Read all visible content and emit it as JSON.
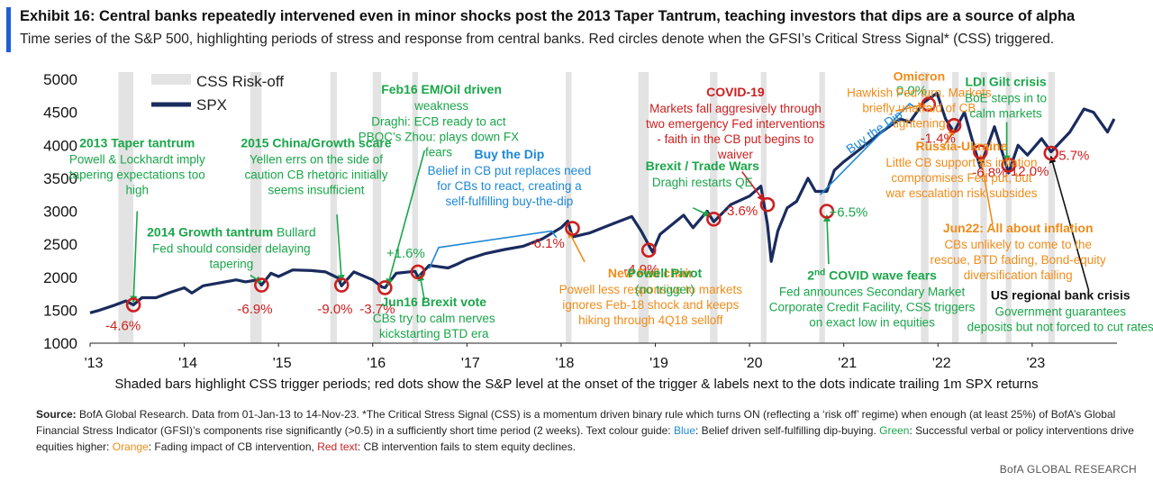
{
  "header": {
    "title": "Exhibit 16: Central banks repeatedly intervened even in minor shocks post the 2013 Taper Tantrum, teaching investors that dips are a source of alpha",
    "subtitle": "Time series of the S&P 500, highlighting  periods of stress and response from central banks. Red circles denote when the GFSI’s Critical  Stress Signal* (CSS) triggered.",
    "accent_color": "#1f5fd6"
  },
  "chart_data": {
    "type": "line",
    "title": "",
    "xlabel": "",
    "ylabel": "",
    "x_range": [
      "2013-01",
      "2023-11"
    ],
    "ylim": [
      1000,
      5000
    ],
    "y_ticks": [
      "1000",
      "1500",
      "2000",
      "2500",
      "3000",
      "3500",
      "4000",
      "4500",
      "5000"
    ],
    "x_ticks": [
      "'13",
      "'14",
      "'15",
      "'16",
      "'17",
      "'18",
      "'19",
      "'20",
      "'21",
      "'22",
      "'23"
    ],
    "grid": false,
    "legend": {
      "placement": "top-left",
      "items": [
        {
          "label": "CSS Risk-off",
          "kind": "shade"
        },
        {
          "label": "SPX",
          "kind": "line"
        }
      ]
    },
    "colors": {
      "line": "#1a2b5e",
      "shade": "#e3e3e3",
      "dot": "#cc1f1f",
      "green": "#1aa64a",
      "blue": "#1e88d6",
      "orange": "#f08c1a",
      "red": "#cc1f1f"
    },
    "series": [
      {
        "name": "SPX",
        "points": [
          [
            2013.0,
            1460
          ],
          [
            2013.1,
            1500
          ],
          [
            2013.25,
            1570
          ],
          [
            2013.38,
            1640
          ],
          [
            2013.46,
            1580
          ],
          [
            2013.55,
            1690
          ],
          [
            2013.7,
            1690
          ],
          [
            2013.85,
            1770
          ],
          [
            2014.0,
            1840
          ],
          [
            2014.08,
            1760
          ],
          [
            2014.2,
            1870
          ],
          [
            2014.4,
            1920
          ],
          [
            2014.55,
            1960
          ],
          [
            2014.65,
            1930
          ],
          [
            2014.78,
            1960
          ],
          [
            2014.82,
            1880
          ],
          [
            2014.92,
            2060
          ],
          [
            2015.0,
            2010
          ],
          [
            2015.15,
            2110
          ],
          [
            2015.35,
            2100
          ],
          [
            2015.5,
            2080
          ],
          [
            2015.63,
            1990
          ],
          [
            2015.67,
            1870
          ],
          [
            2015.8,
            2080
          ],
          [
            2016.0,
            1960
          ],
          [
            2016.1,
            1850
          ],
          [
            2016.13,
            1840
          ],
          [
            2016.25,
            2060
          ],
          [
            2016.45,
            2090
          ],
          [
            2016.48,
            2000
          ],
          [
            2016.6,
            2180
          ],
          [
            2016.8,
            2140
          ],
          [
            2016.9,
            2200
          ],
          [
            2017.0,
            2270
          ],
          [
            2017.2,
            2360
          ],
          [
            2017.4,
            2420
          ],
          [
            2017.6,
            2470
          ],
          [
            2017.8,
            2580
          ],
          [
            2018.0,
            2750
          ],
          [
            2018.07,
            2850
          ],
          [
            2018.12,
            2610
          ],
          [
            2018.3,
            2670
          ],
          [
            2018.55,
            2810
          ],
          [
            2018.75,
            2920
          ],
          [
            2018.85,
            2700
          ],
          [
            2018.97,
            2380
          ],
          [
            2019.05,
            2650
          ],
          [
            2019.3,
            2940
          ],
          [
            2019.4,
            2750
          ],
          [
            2019.55,
            3000
          ],
          [
            2019.62,
            2840
          ],
          [
            2019.8,
            3100
          ],
          [
            2020.0,
            3230
          ],
          [
            2020.12,
            3380
          ],
          [
            2020.19,
            2800
          ],
          [
            2020.23,
            2240
          ],
          [
            2020.3,
            2700
          ],
          [
            2020.4,
            3050
          ],
          [
            2020.5,
            3150
          ],
          [
            2020.62,
            3500
          ],
          [
            2020.7,
            3300
          ],
          [
            2020.82,
            3300
          ],
          [
            2020.9,
            3620
          ],
          [
            2021.0,
            3750
          ],
          [
            2021.2,
            3970
          ],
          [
            2021.4,
            4200
          ],
          [
            2021.6,
            4400
          ],
          [
            2021.7,
            4350
          ],
          [
            2021.85,
            4650
          ],
          [
            2021.99,
            4790
          ],
          [
            2022.08,
            4400
          ],
          [
            2022.17,
            4200
          ],
          [
            2022.28,
            4500
          ],
          [
            2022.4,
            3900
          ],
          [
            2022.45,
            3670
          ],
          [
            2022.6,
            4280
          ],
          [
            2022.75,
            3580
          ],
          [
            2022.85,
            4000
          ],
          [
            2022.95,
            3850
          ],
          [
            2023.1,
            4100
          ],
          [
            2023.2,
            3900
          ],
          [
            2023.4,
            4200
          ],
          [
            2023.55,
            4550
          ],
          [
            2023.65,
            4500
          ],
          [
            2023.8,
            4200
          ],
          [
            2023.87,
            4400
          ]
        ]
      }
    ],
    "shade_periods": [
      [
        2013.3,
        2013.46
      ],
      [
        2014.7,
        2014.82
      ],
      [
        2015.55,
        2015.62
      ],
      [
        2016.0,
        2016.09
      ],
      [
        2016.42,
        2016.48
      ],
      [
        2018.05,
        2018.11
      ],
      [
        2018.82,
        2018.93
      ],
      [
        2019.58,
        2019.66
      ],
      [
        2020.12,
        2020.18
      ],
      [
        2020.74,
        2020.8
      ],
      [
        2021.82,
        2021.9
      ],
      [
        2022.15,
        2022.22
      ],
      [
        2022.45,
        2022.52
      ],
      [
        2022.72,
        2022.78
      ],
      [
        2023.17,
        2023.24
      ]
    ],
    "triggers": [
      {
        "x": 2013.46,
        "y": 1580,
        "label": "-4.6%"
      },
      {
        "x": 2014.82,
        "y": 1880,
        "label": "-6.9%"
      },
      {
        "x": 2015.67,
        "y": 1880,
        "label": "-9.0%"
      },
      {
        "x": 2016.13,
        "y": 1840,
        "label": "-3.7%"
      },
      {
        "x": 2016.48,
        "y": 2080,
        "label": "+1.6%"
      },
      {
        "x": 2018.12,
        "y": 2740,
        "label": "-6.1%"
      },
      {
        "x": 2018.93,
        "y": 2410,
        "label": "-4.9%"
      },
      {
        "x": 2019.62,
        "y": 2880,
        "label": "-3.6%"
      },
      {
        "x": 2020.19,
        "y": 3100,
        "label": ""
      },
      {
        "x": 2020.82,
        "y": 3000,
        "label": "+6.5%"
      },
      {
        "x": 2021.9,
        "y": 4620,
        "label": "0.0%"
      },
      {
        "x": 2022.17,
        "y": 4300,
        "label": "-1.4%"
      },
      {
        "x": 2022.45,
        "y": 3900,
        "label": "-6.8%"
      },
      {
        "x": 2022.75,
        "y": 3700,
        "label": "-12.0%"
      },
      {
        "x": 2023.2,
        "y": 3880,
        "label": "-5.7%"
      }
    ],
    "annotations": [
      {
        "title": "2013 Taper tantrum",
        "body": [
          "Powell & Lockhardt imply",
          "tapering expectations too",
          "high"
        ],
        "color": "green",
        "x": 2013.5,
        "y": 3970,
        "align": "middle",
        "arrow_to": [
          2013.46,
          1620
        ],
        "arrow_from": [
          2013.5,
          3000
        ]
      },
      {
        "title": "2014 Growth tantrum",
        "title_tail": " Bullard",
        "body": [
          "Fed should consider delaying",
          "tapering"
        ],
        "color": "green",
        "x": 2014.5,
        "y": 2620,
        "align": "middle",
        "arrow_to": [
          2014.82,
          1920
        ],
        "arrow_from": [
          2014.7,
          2030
        ]
      },
      {
        "title": "2015 China/Growth scare",
        "body": [
          "Yellen errs on the side of",
          "caution CB rhetoric initially",
          "seems insufficient"
        ],
        "color": "green",
        "x": 2015.4,
        "y": 3970,
        "align": "middle",
        "arrow_to": [
          2015.67,
          1940
        ],
        "arrow_from": [
          2015.62,
          2950
        ]
      },
      {
        "title": "Feb16 EM/Oil driven",
        "body": [
          "weakness"
        ],
        "color": "green",
        "x": 2016.73,
        "y": 4780,
        "align": "middle"
      },
      {
        "body": [
          "Draghi: ECB ready to act",
          "PBOC’s Zhou: plays down FX",
          "fears"
        ],
        "color": "green",
        "x": 2016.7,
        "y": 4300,
        "align": "middle",
        "arrow_to": [
          2016.16,
          1880
        ],
        "arrow_from": [
          2016.55,
          3920
        ]
      },
      {
        "title": "Jun16 Brexit vote",
        "body": [
          "CBs try to calm nerves",
          "kickstarting BTD era"
        ],
        "color": "green",
        "x": 2016.65,
        "y": 1560,
        "align": "middle",
        "arrow_to": [
          2016.5,
          2040
        ],
        "arrow_from": [
          2016.55,
          1650
        ]
      },
      {
        "title": "Buy the Dip",
        "body": [
          "Belief in CB put replaces need",
          "for CBs to react, creating a",
          "self-fulfilling buy-the-dip"
        ],
        "color": "blue",
        "x": 2017.45,
        "y": 3800,
        "align": "middle"
      },
      {
        "title": "Brexit / Trade Wars",
        "body": [
          "Draghi restarts QE"
        ],
        "color": "green",
        "x": 2019.5,
        "y": 3620,
        "align": "middle",
        "arrow_to": [
          2019.58,
          2930
        ],
        "arrow_from": [
          2019.4,
          3050
        ]
      },
      {
        "title": "COVID-19",
        "body": [
          "Markets fall aggresively through",
          "two emergency Fed interventions",
          "- faith in the CB put begins to",
          "waiver"
        ],
        "color": "red",
        "x": 2019.85,
        "y": 4740,
        "align": "middle",
        "arrow_to": [
          2020.15,
          3160
        ],
        "arrow_from": [
          2019.92,
          3600
        ]
      },
      {
        "title": "New Fed chair",
        "body": [
          "Powell less responsive to markets",
          "ignores Feb-18 shock and keeps",
          "hiking through 4Q18 selloff"
        ],
        "color": "orange",
        "x": 2018.95,
        "y": 2000,
        "align": "middle",
        "arrow_to": [
          2018.08,
          2700
        ],
        "arrow_from": [
          2018.25,
          2230
        ]
      },
      {
        "title": "Powell Pivot",
        "body": [
          "(no trigger)"
        ],
        "color": "green",
        "x": 2019.1,
        "y": 2000,
        "align": "middle"
      },
      {
        "title": "2nd COVID wave fears",
        "super": true,
        "body": [
          "Fed announces Secondary Market",
          "Corporate Credit Facility, CSS triggers",
          "on exact low in equities"
        ],
        "color": "green",
        "x": 2021.3,
        "y": 1960,
        "align": "middle",
        "arrow_to": [
          2020.82,
          2940
        ],
        "arrow_from": [
          2020.84,
          2200
        ]
      },
      {
        "title": "Omicron",
        "body": [
          "Hawkish Fed turn. Markets",
          "briefly unafraid of CB",
          "tightening"
        ],
        "color": "orange",
        "x": 2021.8,
        "y": 4980,
        "align": "middle",
        "arrow_to": [
          2021.86,
          4620
        ],
        "arrow_from": [
          2021.55,
          4520
        ]
      },
      {
        "title": "Russia-Ukraine",
        "body": [
          "Little CB support as inflation",
          "compromises Fed put, but",
          "war escalation risk subsides"
        ],
        "color": "orange",
        "x": 2022.25,
        "y": 3920,
        "align": "middle",
        "arrow_to": [
          2022.17,
          4250
        ],
        "arrow_from": [
          2022.05,
          3950
        ]
      },
      {
        "title": "LDI Gilt crisis",
        "body": [
          "BoE steps in to",
          "calm markets"
        ],
        "color": "green",
        "x": 2022.72,
        "y": 4900,
        "align": "middle",
        "arrow_to": [
          2022.73,
          3750
        ],
        "arrow_from": [
          2022.73,
          4350
        ]
      },
      {
        "title": "Jun22: All about inflation",
        "body": [
          "CBs unlikely to come to the",
          "rescue, BTD fading, Bond-equity",
          "diversification failing"
        ],
        "color": "orange",
        "x": 2022.85,
        "y": 2680,
        "align": "middle",
        "arrow_to": [
          2022.45,
          3850
        ],
        "arrow_from": [
          2022.58,
          2800
        ]
      },
      {
        "title": "US regional bank crisis",
        "body": [
          "Government guarantees",
          "deposits but not forced to cut rates"
        ],
        "color": "black",
        "body_color": "green",
        "x": 2023.3,
        "y": 1660,
        "align": "middle",
        "arrow_to": [
          2023.2,
          3830
        ],
        "arrow_from": [
          2023.6,
          1800
        ]
      }
    ],
    "arrows": [
      {
        "label": "Buy the Dip",
        "color": "blue",
        "text_x": 2021.35,
        "text_y": 4150,
        "rotate": -35
      }
    ]
  },
  "chart_note": "Shaded bars highlight CSS trigger periods; red dots show the S&P level at the onset of the trigger & labels next to the dots indicate trailing  1m SPX returns",
  "footnote": {
    "source_label": "Source:",
    "source_text": " BofA Global Research. Data from 01-Jan-13 to 14-Nov-23. *The Critical Stress Signal (CSS) is a momentum driven binary rule which turns ON (reflecting a ‘risk off’ regime) when enough (at least 25%) of BofA’s Global Financial Stress Indicator (GFSI)’s components rise significantly (>0.5) in a sufficiently short time period (2 weeks). Text colour guide: ",
    "blue_label": "Blue",
    "blue_text": ": Belief driven self-fulfilling dip-buying. ",
    "green_label": "Green",
    "green_text": ": Successful verbal or policy interventions drive equities higher: ",
    "orange_label": "Orange",
    "orange_text": ": Fading impact of CB intervention, ",
    "red_label": "Red text",
    "red_text": ": CB intervention fails to stem equity declines."
  },
  "brand": "BofA GLOBAL RESEARCH"
}
